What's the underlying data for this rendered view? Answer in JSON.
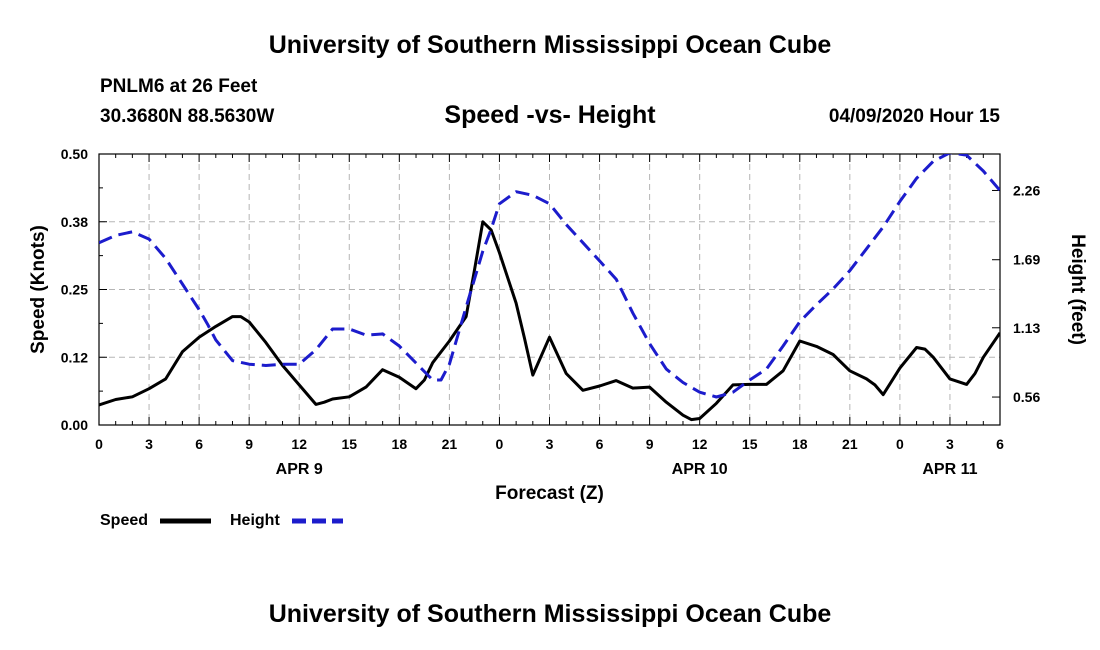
{
  "header": {
    "title": "University of Southern Mississippi Ocean Cube",
    "station": "PNLM6 at 26 Feet",
    "coords": "30.3680N 88.5630W",
    "subtitle": "Speed -vs- Height",
    "timestamp": "04/09/2020 Hour 15"
  },
  "footer": {
    "title": "University of Southern Mississippi Ocean Cube"
  },
  "chart_data": {
    "type": "line",
    "title": "Speed -vs- Height",
    "xlabel": "Forecast (Z)",
    "ylabel_left": "Speed (Knots)",
    "ylabel_right": "Height (feet)",
    "x_range_hours": [
      0,
      54
    ],
    "y_left_range": [
      0,
      0.5
    ],
    "y_right_range": [
      0.33,
      2.56
    ],
    "grid": true,
    "x_ticks": [
      {
        "h": 0,
        "label": "0"
      },
      {
        "h": 3,
        "label": "3"
      },
      {
        "h": 6,
        "label": "6"
      },
      {
        "h": 9,
        "label": "9"
      },
      {
        "h": 12,
        "label": "12"
      },
      {
        "h": 15,
        "label": "15"
      },
      {
        "h": 18,
        "label": "18"
      },
      {
        "h": 21,
        "label": "21"
      },
      {
        "h": 24,
        "label": "0"
      },
      {
        "h": 27,
        "label": "3"
      },
      {
        "h": 30,
        "label": "6"
      },
      {
        "h": 33,
        "label": "9"
      },
      {
        "h": 36,
        "label": "12"
      },
      {
        "h": 39,
        "label": "15"
      },
      {
        "h": 42,
        "label": "18"
      },
      {
        "h": 45,
        "label": "21"
      },
      {
        "h": 48,
        "label": "0"
      },
      {
        "h": 51,
        "label": "3"
      },
      {
        "h": 54,
        "label": "6"
      }
    ],
    "date_labels": [
      {
        "h": 12,
        "label": "APR 9"
      },
      {
        "h": 36,
        "label": "APR 10"
      },
      {
        "h": 51,
        "label": "APR 11"
      }
    ],
    "y_left_ticks": [
      {
        "v": 0.0,
        "label": "0.00"
      },
      {
        "v": 0.125,
        "label": "0.12"
      },
      {
        "v": 0.25,
        "label": "0.25"
      },
      {
        "v": 0.375,
        "label": "0.38"
      },
      {
        "v": 0.5,
        "label": "0.50"
      }
    ],
    "y_right_ticks": [
      {
        "v": 0.56,
        "label": "0.56"
      },
      {
        "v": 1.13,
        "label": "1.13"
      },
      {
        "v": 1.69,
        "label": "1.69"
      },
      {
        "v": 2.26,
        "label": "2.26"
      }
    ],
    "series": [
      {
        "name": "Speed",
        "axis": "left",
        "color": "#000000",
        "dash": false,
        "x": [
          0,
          1,
          2,
          3,
          4,
          5,
          6,
          7,
          8,
          8.5,
          9,
          10,
          11,
          12,
          13,
          13.5,
          14,
          15,
          16,
          17,
          18,
          19,
          19.5,
          20,
          21,
          22,
          22.5,
          23,
          23.5,
          24,
          25,
          25.5,
          26,
          27,
          28,
          29,
          30,
          31,
          32,
          33,
          34,
          35,
          35.5,
          36,
          37,
          38,
          39,
          40,
          41,
          42,
          43,
          44,
          45,
          46,
          46.5,
          47,
          48,
          49,
          49.5,
          50,
          51,
          52,
          52.5,
          53,
          54
        ],
        "values": [
          0.037,
          0.047,
          0.052,
          0.067,
          0.085,
          0.135,
          0.162,
          0.182,
          0.2,
          0.2,
          0.19,
          0.152,
          0.11,
          0.074,
          0.038,
          0.042,
          0.048,
          0.052,
          0.07,
          0.102,
          0.088,
          0.067,
          0.083,
          0.115,
          0.155,
          0.2,
          0.285,
          0.375,
          0.36,
          0.318,
          0.225,
          0.16,
          0.092,
          0.162,
          0.095,
          0.064,
          0.072,
          0.082,
          0.068,
          0.07,
          0.042,
          0.018,
          0.01,
          0.012,
          0.04,
          0.074,
          0.075,
          0.075,
          0.1,
          0.155,
          0.145,
          0.13,
          0.1,
          0.085,
          0.074,
          0.056,
          0.105,
          0.143,
          0.14,
          0.125,
          0.085,
          0.075,
          0.095,
          0.125,
          0.17
        ]
      },
      {
        "name": "Height",
        "axis": "right",
        "color": "#1c1ccc",
        "dash": true,
        "x": [
          0,
          1,
          2,
          3,
          4,
          5,
          6,
          6.5,
          7,
          8,
          9,
          10,
          11,
          12,
          13,
          14,
          15,
          16,
          17,
          18,
          19,
          20,
          20.5,
          21,
          22,
          23,
          23.5,
          24,
          25,
          26,
          27,
          28,
          29,
          30,
          31,
          32,
          33,
          34,
          35,
          36,
          37,
          38,
          39,
          40,
          41,
          42,
          43,
          44,
          45,
          46,
          47,
          48,
          49,
          50,
          51,
          52,
          53,
          54
        ],
        "values": [
          1.83,
          1.89,
          1.92,
          1.86,
          1.7,
          1.49,
          1.28,
          1.16,
          1.03,
          0.86,
          0.83,
          0.82,
          0.83,
          0.83,
          0.95,
          1.12,
          1.12,
          1.07,
          1.08,
          0.98,
          0.84,
          0.7,
          0.7,
          0.83,
          1.3,
          1.76,
          1.94,
          2.15,
          2.25,
          2.22,
          2.15,
          1.98,
          1.83,
          1.68,
          1.53,
          1.25,
          1.0,
          0.79,
          0.68,
          0.6,
          0.56,
          0.6,
          0.7,
          0.79,
          0.98,
          1.18,
          1.32,
          1.45,
          1.6,
          1.78,
          1.96,
          2.17,
          2.36,
          2.5,
          2.57,
          2.55,
          2.42,
          2.26
        ]
      }
    ],
    "legend": [
      {
        "label": "Speed",
        "color": "#000000",
        "dash": false
      },
      {
        "label": "Height",
        "color": "#1c1ccc",
        "dash": true
      }
    ],
    "legend_position": "bottom-left"
  }
}
